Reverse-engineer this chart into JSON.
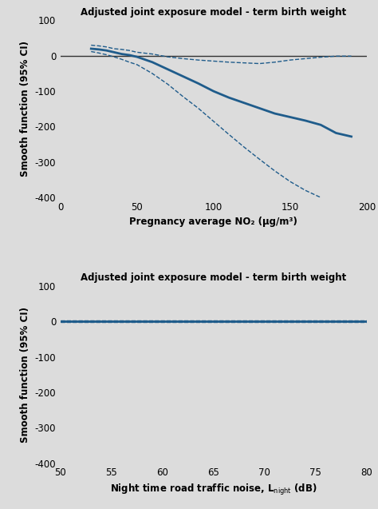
{
  "title": "Adjusted joint exposure model - term birth weight",
  "bg_color": "#dcdcdc",
  "line_color": "#1f5c8b",
  "zero_line_color": "#333333",
  "ylabel": "Smooth function (95% CI)",
  "ylim": [
    -400,
    100
  ],
  "yticks": [
    100,
    0,
    -100,
    -200,
    -300,
    -400
  ],
  "plot1": {
    "xlabel": "Pregnancy average NO₂ (μg/m³)",
    "xlim": [
      0,
      200
    ],
    "xticks": [
      0,
      50,
      100,
      150,
      200
    ],
    "x_main": [
      20,
      25,
      30,
      35,
      40,
      45,
      50,
      60,
      70,
      80,
      90,
      100,
      110,
      120,
      130,
      140,
      150,
      160,
      170,
      180,
      190
    ],
    "y_main": [
      20,
      18,
      15,
      10,
      5,
      2,
      -3,
      -18,
      -38,
      -58,
      -78,
      -100,
      -118,
      -133,
      -148,
      -163,
      -173,
      -183,
      -195,
      -218,
      -228
    ],
    "x_ci_upper": [
      20,
      25,
      30,
      35,
      40,
      45,
      50,
      60,
      70,
      80,
      90,
      100,
      110,
      120,
      130,
      140,
      150,
      160,
      170,
      180,
      190
    ],
    "y_ci_upper": [
      30,
      28,
      25,
      20,
      18,
      15,
      10,
      5,
      -3,
      -8,
      -12,
      -15,
      -18,
      -20,
      -22,
      -18,
      -12,
      -8,
      -4,
      -1,
      -1
    ],
    "x_ci_lower": [
      20,
      25,
      30,
      35,
      40,
      45,
      50,
      60,
      70,
      80,
      90,
      100,
      110,
      120,
      130,
      140,
      150,
      160,
      170,
      180,
      190
    ],
    "y_ci_lower": [
      12,
      8,
      3,
      -3,
      -10,
      -18,
      -25,
      -50,
      -80,
      -115,
      -148,
      -185,
      -222,
      -258,
      -292,
      -325,
      -355,
      -380,
      -400,
      -420,
      -430
    ]
  },
  "plot2": {
    "xlabel": "Night time road traffic noise, L$_\\mathrm{night}$ (dB)",
    "xlim": [
      50,
      80
    ],
    "xticks": [
      50,
      55,
      60,
      65,
      70,
      75,
      80
    ],
    "x_main": [
      50,
      55,
      60,
      65,
      70,
      75,
      80
    ],
    "y_main": [
      0,
      0,
      0,
      0,
      0,
      0,
      0
    ],
    "x_ci_upper": [
      50,
      55,
      60,
      65,
      70,
      75,
      80
    ],
    "y_ci_upper": [
      2,
      2,
      2,
      2,
      2,
      2,
      2
    ],
    "x_ci_lower": [
      50,
      55,
      60,
      65,
      70,
      75,
      80
    ],
    "y_ci_lower": [
      -2,
      -2,
      -2,
      -2,
      -2,
      -2,
      -2
    ]
  }
}
